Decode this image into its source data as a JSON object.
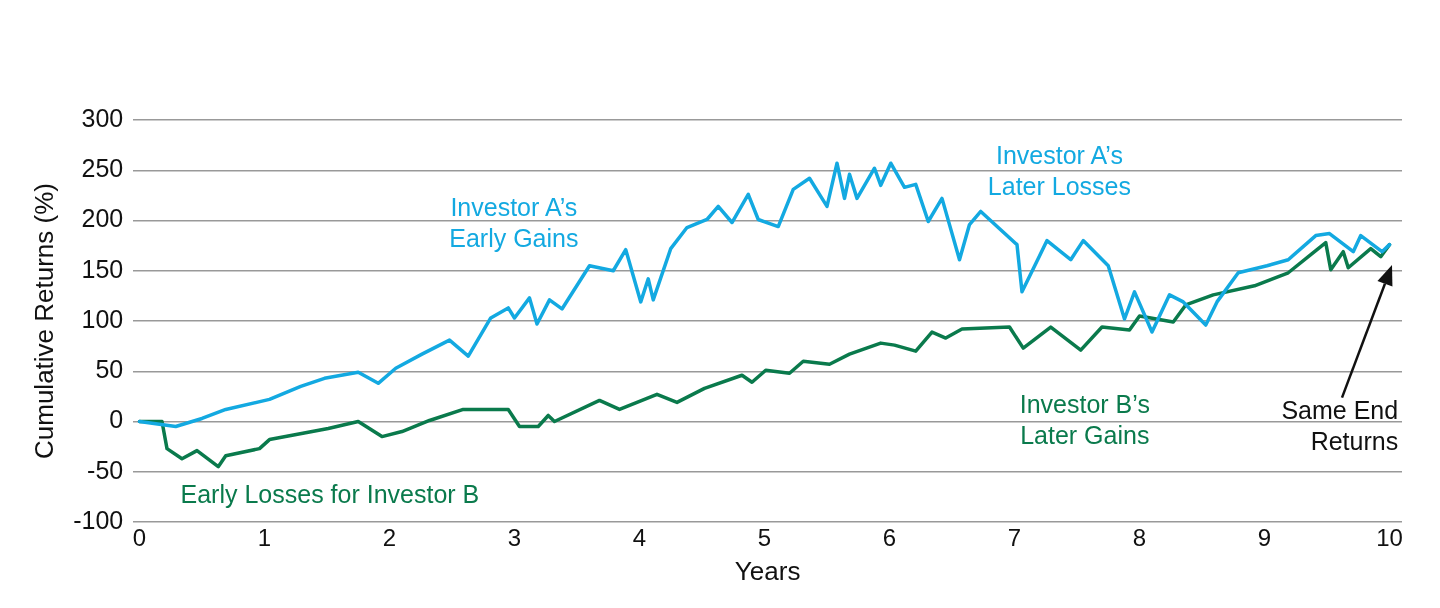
{
  "chart_data": {
    "type": "line",
    "xlabel": "Years",
    "ylabel": "Cumulative Returns (%)",
    "xlim": [
      -0.05,
      10.1
    ],
    "xticks": [
      0,
      1,
      2,
      3,
      4,
      5,
      6,
      7,
      8,
      9,
      10
    ],
    "ylim": [
      -100,
      300
    ],
    "yticks": [
      -100,
      -50,
      0,
      50,
      100,
      150,
      200,
      250,
      300
    ],
    "grid": "y",
    "legend": false,
    "marker": "none",
    "line_style": "solid",
    "series": [
      {
        "color": "#13a9e1",
        "x": [
          0,
          0.29,
          0.5,
          0.69,
          1.04,
          1.29,
          1.48,
          1.75,
          1.91,
          2.05,
          2.26,
          2.48,
          2.63,
          2.81,
          2.95,
          3.0,
          3.12,
          3.18,
          3.28,
          3.38,
          3.6,
          3.79,
          3.89,
          4.01,
          4.07,
          4.11,
          4.25,
          4.38,
          4.54,
          4.63,
          4.74,
          4.87,
          4.95,
          5.11,
          5.23,
          5.36,
          5.44,
          5.5,
          5.58,
          5.64,
          5.68,
          5.74,
          5.88,
          5.93,
          6.01,
          6.12,
          6.21,
          6.31,
          6.42,
          6.56,
          6.64,
          6.73,
          7.02,
          7.06,
          7.26,
          7.45,
          7.55,
          7.75,
          7.88,
          7.96,
          8.1,
          8.24,
          8.35,
          8.53,
          8.62,
          8.79,
          9.02,
          9.19,
          9.41,
          9.52,
          9.71,
          9.77,
          9.94,
          10.0
        ],
        "values": [
          0,
          -5,
          3,
          12,
          22,
          35,
          43,
          49,
          38,
          53,
          67,
          81,
          65,
          103,
          113,
          103,
          123,
          97,
          121,
          112,
          155,
          150,
          171,
          119,
          142,
          121,
          172,
          193,
          201,
          214,
          198,
          226,
          201,
          194,
          231,
          242,
          226,
          214,
          257,
          222,
          246,
          222,
          252,
          235,
          257,
          233,
          236,
          199,
          222,
          161,
          196,
          209,
          176,
          129,
          180,
          161,
          180,
          155,
          102,
          129,
          89,
          126,
          119,
          96,
          119,
          148,
          155,
          161,
          185,
          187,
          169,
          185,
          169,
          176
        ]
      },
      {
        "color": "#0a7a4c",
        "x": [
          0,
          0.18,
          0.22,
          0.34,
          0.46,
          0.63,
          0.69,
          0.96,
          1.04,
          1.51,
          1.75,
          1.94,
          2.1,
          2.32,
          2.59,
          2.95,
          3.04,
          3.19,
          3.27,
          3.32,
          3.68,
          3.84,
          4.14,
          4.3,
          4.52,
          4.82,
          4.9,
          5.01,
          5.2,
          5.31,
          5.52,
          5.68,
          5.93,
          6.04,
          6.21,
          6.34,
          6.45,
          6.58,
          6.96,
          7.07,
          7.29,
          7.53,
          7.7,
          7.92,
          8.0,
          8.27,
          8.37,
          8.59,
          8.92,
          9.19,
          9.49,
          9.53,
          9.63,
          9.67,
          9.85,
          9.93,
          10.0
        ],
        "values": [
          0,
          0,
          -27,
          -37,
          -29,
          -45,
          -34,
          -27,
          -18,
          -7,
          0,
          -15,
          -10,
          1,
          12,
          12,
          -5,
          -5,
          6,
          0,
          21,
          12,
          27,
          19,
          33,
          46,
          39,
          51,
          48,
          60,
          57,
          67,
          78,
          76,
          70,
          89,
          83,
          92,
          94,
          73,
          94,
          71,
          94,
          91,
          105,
          99,
          116,
          126,
          135,
          148,
          178,
          151,
          169,
          153,
          172,
          164,
          176
        ]
      }
    ],
    "annotations": [
      "Investor A’s\nEarly Gains",
      "Investor A’s\nLater Losses",
      "Early Losses for Investor B",
      "Investor B’s\nLater Gains",
      "Same End\nReturns"
    ]
  }
}
